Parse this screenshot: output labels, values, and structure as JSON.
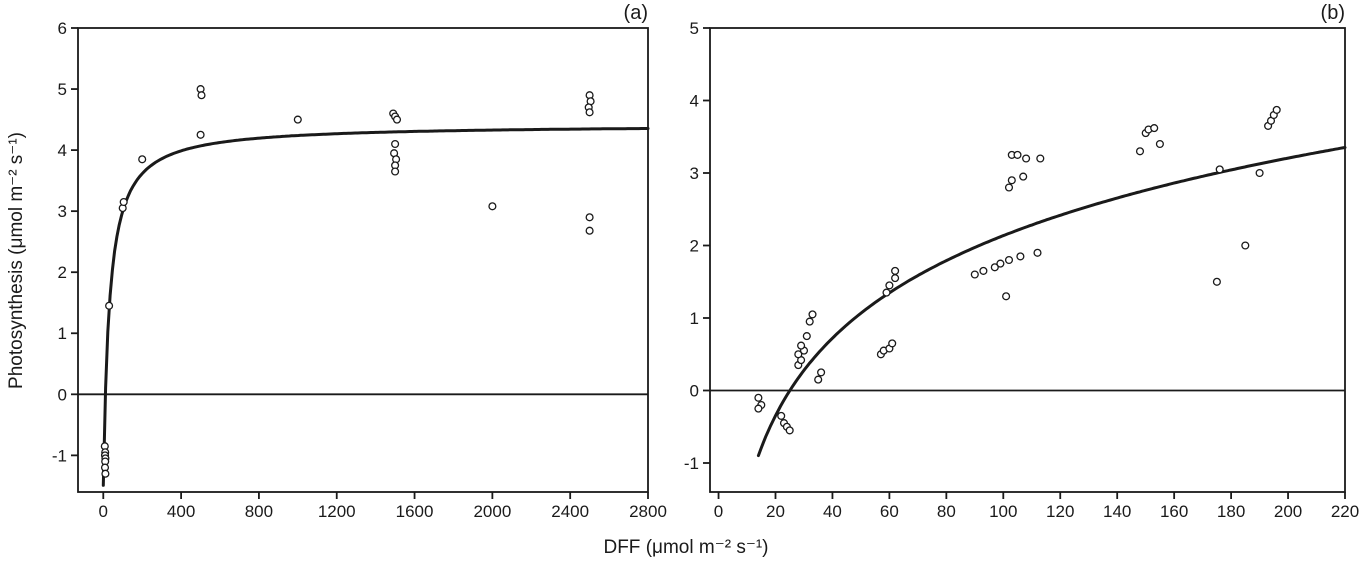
{
  "figure": {
    "panel_a_label": "(a)",
    "panel_b_label": "(b)",
    "x_axis_label": "DFF (μmol m⁻² s⁻¹)",
    "y_axis_label": "Photosynthesis (μmol m⁻² s⁻¹)",
    "ink_color": "#1a1a1a",
    "background_color": "#ffffff"
  },
  "chart_data": [
    {
      "type": "scatter",
      "panel": "a",
      "title": "(a)",
      "xlabel": "DFF (μmol m⁻² s⁻¹)",
      "ylabel": "Photosynthesis (μmol m⁻² s⁻¹)",
      "xlim": [
        -130,
        2800
      ],
      "ylim": [
        -1.6,
        6
      ],
      "xticks": [
        0,
        400,
        800,
        1200,
        1600,
        2000,
        2400,
        2800
      ],
      "yticks": [
        -1,
        0,
        1,
        2,
        3,
        4,
        5,
        6
      ],
      "zero_line": true,
      "grid": false,
      "marker": "open-circle",
      "stroke_color": "#1a1a1a",
      "curve": {
        "model": "michaelis",
        "pmax": 5.92,
        "km": 31.5,
        "rd": 1.5,
        "x_start": 0.05,
        "x_end": 2800
      },
      "points": [
        [
          8,
          -0.85
        ],
        [
          10,
          -0.95
        ],
        [
          9,
          -1.0
        ],
        [
          11,
          -1.05
        ],
        [
          10,
          -1.1
        ],
        [
          9,
          -1.2
        ],
        [
          11,
          -1.3
        ],
        [
          30,
          1.45
        ],
        [
          100,
          3.05
        ],
        [
          105,
          3.15
        ],
        [
          200,
          3.85
        ],
        [
          500,
          5.0
        ],
        [
          505,
          4.9
        ],
        [
          500,
          4.25
        ],
        [
          1000,
          4.5
        ],
        [
          1490,
          4.6
        ],
        [
          1500,
          4.55
        ],
        [
          1510,
          4.5
        ],
        [
          1500,
          4.1
        ],
        [
          1495,
          3.95
        ],
        [
          1505,
          3.85
        ],
        [
          1500,
          3.75
        ],
        [
          1500,
          3.65
        ],
        [
          2000,
          3.08
        ],
        [
          2500,
          4.9
        ],
        [
          2505,
          4.8
        ],
        [
          2495,
          4.7
        ],
        [
          2500,
          4.62
        ],
        [
          2500,
          2.9
        ],
        [
          2500,
          2.68
        ]
      ]
    },
    {
      "type": "scatter",
      "panel": "b",
      "title": "(b)",
      "xlabel": "DFF (μmol m⁻² s⁻¹)",
      "ylabel": "Photosynthesis (μmol m⁻² s⁻¹)",
      "xlim": [
        -3,
        220
      ],
      "ylim": [
        -1.4,
        5
      ],
      "xticks": [
        0,
        20,
        40,
        60,
        80,
        100,
        120,
        140,
        160,
        180,
        200,
        220
      ],
      "yticks": [
        -1,
        0,
        1,
        2,
        3,
        4,
        5
      ],
      "zero_line": true,
      "grid": false,
      "marker": "open-circle",
      "stroke_color": "#1a1a1a",
      "curve": {
        "model": "log",
        "a": 1.543,
        "b": -4.97,
        "x_start": 14,
        "x_end": 220
      },
      "points": [
        [
          14,
          -0.1
        ],
        [
          15,
          -0.2
        ],
        [
          14,
          -0.25
        ],
        [
          22,
          -0.35
        ],
        [
          23,
          -0.45
        ],
        [
          24,
          -0.5
        ],
        [
          25,
          -0.55
        ],
        [
          28,
          0.35
        ],
        [
          29,
          0.42
        ],
        [
          28,
          0.5
        ],
        [
          30,
          0.55
        ],
        [
          29,
          0.62
        ],
        [
          31,
          0.75
        ],
        [
          32,
          0.95
        ],
        [
          33,
          1.05
        ],
        [
          35,
          0.15
        ],
        [
          36,
          0.25
        ],
        [
          57,
          0.5
        ],
        [
          58,
          0.55
        ],
        [
          60,
          0.58
        ],
        [
          61,
          0.65
        ],
        [
          59,
          1.35
        ],
        [
          60,
          1.45
        ],
        [
          62,
          1.55
        ],
        [
          62,
          1.65
        ],
        [
          90,
          1.6
        ],
        [
          93,
          1.65
        ],
        [
          97,
          1.7
        ],
        [
          99,
          1.75
        ],
        [
          101,
          1.3
        ],
        [
          102,
          1.8
        ],
        [
          102,
          2.8
        ],
        [
          103,
          2.9
        ],
        [
          103,
          3.25
        ],
        [
          105,
          3.25
        ],
        [
          106,
          1.85
        ],
        [
          107,
          2.95
        ],
        [
          108,
          3.2
        ],
        [
          112,
          1.9
        ],
        [
          113,
          3.2
        ],
        [
          148,
          3.3
        ],
        [
          150,
          3.55
        ],
        [
          151,
          3.6
        ],
        [
          153,
          3.62
        ],
        [
          155,
          3.4
        ],
        [
          175,
          1.5
        ],
        [
          176,
          3.05
        ],
        [
          185,
          2.0
        ],
        [
          190,
          3.0
        ],
        [
          193,
          3.65
        ],
        [
          194,
          3.72
        ],
        [
          195,
          3.8
        ],
        [
          196,
          3.87
        ]
      ]
    }
  ]
}
